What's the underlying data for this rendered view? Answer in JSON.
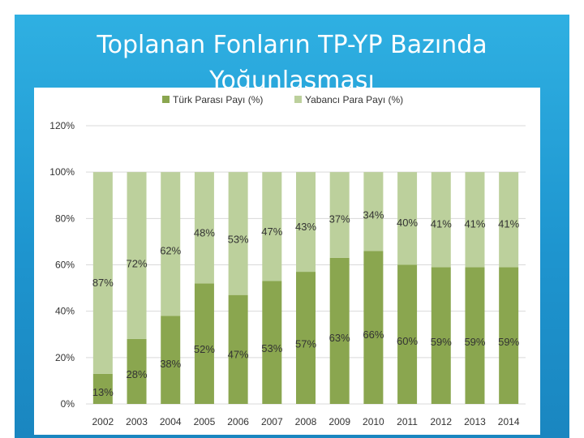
{
  "slide": {
    "title": "Toplanan Fonların TP-YP Bazında Yoğunlaşması"
  },
  "colors": {
    "slide_background": "#1e95cf",
    "tp_series": "#8aa64f",
    "yp_series": "#bcd09c",
    "grid": "#d9d9d9",
    "text": "#333333"
  },
  "chart_data": {
    "type": "bar",
    "stacked": true,
    "categories": [
      "2002",
      "2003",
      "2004",
      "2005",
      "2006",
      "2007",
      "2008",
      "2009",
      "2010",
      "2011",
      "2012",
      "2013",
      "2014"
    ],
    "series": [
      {
        "name": "Türk Parası Payı (%)",
        "color": "#8aa64f",
        "values": [
          13,
          28,
          38,
          52,
          47,
          53,
          57,
          63,
          66,
          60,
          59,
          59,
          59
        ],
        "labels": [
          "13%",
          "28%",
          "38%",
          "52%",
          "47%",
          "53%",
          "57%",
          "63%",
          "66%",
          "60%",
          "59%",
          "59%",
          "59%"
        ]
      },
      {
        "name": "Yabancı Para Payı (%)",
        "color": "#bcd09c",
        "values": [
          87,
          72,
          62,
          48,
          53,
          47,
          43,
          37,
          34,
          40,
          41,
          41,
          41
        ],
        "labels": [
          "87%",
          "72%",
          "62%",
          "48%",
          "53%",
          "47%",
          "43%",
          "37%",
          "34%",
          "40%",
          "41%",
          "41%",
          "41%"
        ]
      }
    ],
    "y_ticks": [
      "0%",
      "20%",
      "40%",
      "60%",
      "80%",
      "100%",
      "120%"
    ],
    "ylim": [
      0,
      120
    ],
    "grid": "horizontal",
    "legend_position": "top"
  }
}
